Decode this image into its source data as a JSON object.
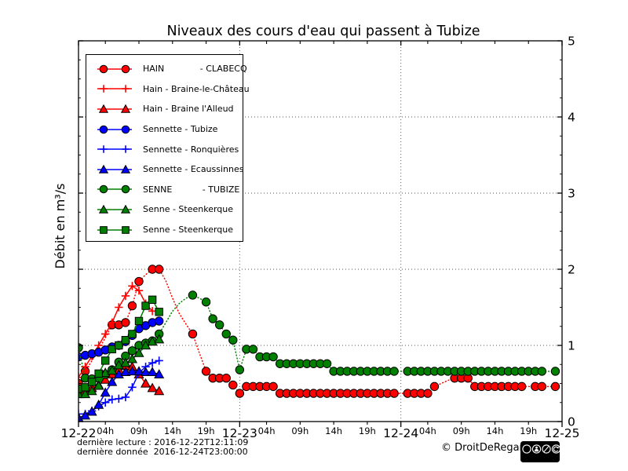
{
  "accent_colors": {
    "hain_red": "#ff0000",
    "sennette_blue": "#0000ff",
    "senne_green": "#008000"
  },
  "footer": {
    "last_read": "dernière lecture : 2016-12-22T12:11:09",
    "last_data": "dernière donnée  2016-12-24T23:00:00",
    "copyright": "© DroitDeRegard.be",
    "license_badge": {
      "name": "cc-by-nc-sa",
      "cc_label": "cc",
      "terms": [
        "BY",
        "NC",
        "SA"
      ]
    }
  },
  "chart_data": {
    "type": "line",
    "title": "Niveaux des cours d'eau qui passent à Tubize",
    "ylabel": "Débit en m³/s",
    "xlim_hours": [
      0,
      72
    ],
    "ylim": [
      0,
      5
    ],
    "y_ticks": [
      0,
      1,
      2,
      3,
      4,
      5
    ],
    "y_minor_step": 0.25,
    "grid_h_values": [
      1,
      2,
      3,
      4
    ],
    "grid_v_hours": [
      24,
      48
    ],
    "x_day_ticks": [
      {
        "hour": 0,
        "label": "12-22"
      },
      {
        "hour": 24,
        "label": "12-23"
      },
      {
        "hour": 48,
        "label": "12-24"
      },
      {
        "hour": 72,
        "label": "12-25"
      }
    ],
    "x_hour_ticks": [
      {
        "hour": 4,
        "label": "04h"
      },
      {
        "hour": 9,
        "label": "09h"
      },
      {
        "hour": 14,
        "label": "14h"
      },
      {
        "hour": 19,
        "label": "19h"
      },
      {
        "hour": 28,
        "label": "04h"
      },
      {
        "hour": 33,
        "label": "09h"
      },
      {
        "hour": 38,
        "label": "14h"
      },
      {
        "hour": 43,
        "label": "19h"
      },
      {
        "hour": 52,
        "label": "04h"
      },
      {
        "hour": 57,
        "label": "09h"
      },
      {
        "hour": 62,
        "label": "14h"
      },
      {
        "hour": 67,
        "label": "19h"
      }
    ],
    "legend_position": "upper left",
    "series": [
      {
        "id": "hain-clabecq",
        "label": "HAIN             - CLABECQ",
        "color": "#ff0000",
        "marker": "circle",
        "line": "dotted",
        "points": [
          [
            0,
            0.5
          ],
          [
            1,
            0.66
          ],
          [
            2,
            0.8
          ],
          [
            3,
            0.95
          ],
          [
            4,
            1.1
          ],
          [
            5,
            1.27
          ],
          [
            6,
            1.27
          ],
          [
            7,
            1.3
          ],
          [
            8,
            1.52
          ],
          [
            9,
            1.84
          ],
          [
            10,
            1.93
          ],
          [
            11,
            2.0
          ],
          [
            12,
            2.0
          ],
          [
            13,
            1.85
          ],
          [
            14,
            1.62
          ],
          [
            15,
            1.42
          ],
          [
            16,
            1.28
          ],
          [
            17,
            1.15
          ],
          [
            18,
            0.9
          ],
          [
            19,
            0.66
          ],
          [
            20,
            0.57
          ],
          [
            21,
            0.57
          ],
          [
            22,
            0.57
          ],
          [
            23,
            0.48
          ],
          [
            24,
            0.37
          ],
          [
            25,
            0.46
          ],
          [
            26,
            0.46
          ],
          [
            27,
            0.46
          ],
          [
            28,
            0.46
          ],
          [
            29,
            0.46
          ],
          [
            30,
            0.37
          ],
          [
            31,
            0.37
          ],
          [
            32,
            0.37
          ],
          [
            33,
            0.37
          ],
          [
            34,
            0.37
          ],
          [
            35,
            0.37
          ],
          [
            36,
            0.37
          ],
          [
            37,
            0.37
          ],
          [
            38,
            0.37
          ],
          [
            39,
            0.37
          ],
          [
            40,
            0.37
          ],
          [
            41,
            0.37
          ],
          [
            42,
            0.37
          ],
          [
            43,
            0.37
          ],
          [
            44,
            0.37
          ],
          [
            45,
            0.37
          ],
          [
            46,
            0.37
          ],
          [
            47,
            0.37
          ],
          [
            49,
            0.37
          ],
          [
            50,
            0.37
          ],
          [
            51,
            0.37
          ],
          [
            52,
            0.37
          ],
          [
            53,
            0.46
          ],
          [
            54,
            0.5
          ],
          [
            55,
            0.54
          ],
          [
            56,
            0.57
          ],
          [
            57,
            0.57
          ],
          [
            58,
            0.57
          ],
          [
            59,
            0.46
          ],
          [
            60,
            0.46
          ],
          [
            61,
            0.46
          ],
          [
            62,
            0.46
          ],
          [
            63,
            0.46
          ],
          [
            64,
            0.46
          ],
          [
            65,
            0.46
          ],
          [
            66,
            0.46
          ],
          [
            68,
            0.46
          ],
          [
            69,
            0.46
          ],
          [
            71,
            0.46
          ]
        ],
        "marker_skip_hours": [
          2,
          3,
          4,
          10,
          13,
          14,
          15,
          16,
          18,
          54,
          55
        ]
      },
      {
        "id": "hain-braine-le-chateau",
        "label": "Hain - Braine-le-Château",
        "color": "#ff0000",
        "marker": "plus",
        "line": "solid",
        "points": [
          [
            0,
            0.58
          ],
          [
            1,
            0.72
          ],
          [
            2,
            0.86
          ],
          [
            3,
            1.0
          ],
          [
            4,
            1.15
          ],
          [
            5,
            1.3
          ],
          [
            6,
            1.5
          ],
          [
            7,
            1.65
          ],
          [
            8,
            1.78
          ],
          [
            9,
            1.72
          ],
          [
            10,
            1.55
          ],
          [
            11,
            1.45
          ]
        ]
      },
      {
        "id": "hain-braine-lalleud",
        "label": "Hain - Braine l'Alleud",
        "color": "#ff0000",
        "marker": "triangle",
        "line": "solid",
        "points": [
          [
            0,
            0.4
          ],
          [
            1,
            0.41
          ],
          [
            2,
            0.44
          ],
          [
            3,
            0.48
          ],
          [
            4,
            0.55
          ],
          [
            5,
            0.62
          ],
          [
            6,
            0.68
          ],
          [
            7,
            0.73
          ],
          [
            8,
            0.72
          ],
          [
            9,
            0.62
          ],
          [
            10,
            0.5
          ],
          [
            11,
            0.44
          ],
          [
            12,
            0.4
          ]
        ]
      },
      {
        "id": "sennette-tubize",
        "label": "Sennette - Tubize",
        "color": "#0000ff",
        "marker": "circle",
        "line": "solid",
        "points": [
          [
            0,
            0.85
          ],
          [
            1,
            0.87
          ],
          [
            2,
            0.89
          ],
          [
            3,
            0.91
          ],
          [
            4,
            0.94
          ],
          [
            5,
            0.98
          ],
          [
            6,
            1.0
          ],
          [
            7,
            1.05
          ],
          [
            8,
            1.13
          ],
          [
            9,
            1.22
          ],
          [
            10,
            1.26
          ],
          [
            11,
            1.3
          ],
          [
            12,
            1.32
          ]
        ]
      },
      {
        "id": "sennette-ronquieres",
        "label": "Sennette - Ronquières",
        "color": "#0000ff",
        "marker": "plus",
        "line": "solid",
        "points": [
          [
            0,
            0.1
          ],
          [
            1,
            0.1
          ],
          [
            2,
            0.14
          ],
          [
            3,
            0.2
          ],
          [
            4,
            0.25
          ],
          [
            5,
            0.29
          ],
          [
            6,
            0.3
          ],
          [
            7,
            0.32
          ],
          [
            8,
            0.45
          ],
          [
            9,
            0.64
          ],
          [
            10,
            0.72
          ],
          [
            11,
            0.77
          ],
          [
            12,
            0.8
          ]
        ]
      },
      {
        "id": "sennette-ecaussinnes",
        "label": "Sennette - Ecaussinnes",
        "color": "#0000ff",
        "marker": "triangle",
        "line": "solid",
        "points": [
          [
            0,
            0.05
          ],
          [
            1,
            0.08
          ],
          [
            2,
            0.13
          ],
          [
            3,
            0.22
          ],
          [
            4,
            0.38
          ],
          [
            5,
            0.52
          ],
          [
            6,
            0.62
          ],
          [
            7,
            0.65
          ],
          [
            8,
            0.66
          ],
          [
            9,
            0.66
          ],
          [
            10,
            0.65
          ],
          [
            11,
            0.65
          ],
          [
            12,
            0.62
          ]
        ]
      },
      {
        "id": "senne-tubize",
        "label": "SENNE           - TUBIZE",
        "color": "#008000",
        "marker": "circle",
        "line": "dotted",
        "points": [
          [
            0,
            0.97
          ],
          [
            1,
            0.57
          ],
          [
            2,
            0.56
          ],
          [
            3,
            0.57
          ],
          [
            4,
            0.62
          ],
          [
            5,
            0.68
          ],
          [
            6,
            0.78
          ],
          [
            7,
            0.86
          ],
          [
            8,
            0.93
          ],
          [
            9,
            1.0
          ],
          [
            10,
            1.03
          ],
          [
            11,
            1.06
          ],
          [
            12,
            1.15
          ],
          [
            13,
            1.3
          ],
          [
            14,
            1.45
          ],
          [
            15,
            1.55
          ],
          [
            16,
            1.62
          ],
          [
            17,
            1.66
          ],
          [
            18,
            1.62
          ],
          [
            19,
            1.57
          ],
          [
            20,
            1.35
          ],
          [
            21,
            1.27
          ],
          [
            22,
            1.15
          ],
          [
            23,
            1.07
          ],
          [
            24,
            0.68
          ],
          [
            25,
            0.95
          ],
          [
            26,
            0.95
          ],
          [
            27,
            0.85
          ],
          [
            28,
            0.85
          ],
          [
            29,
            0.85
          ],
          [
            30,
            0.76
          ],
          [
            31,
            0.76
          ],
          [
            32,
            0.76
          ],
          [
            33,
            0.76
          ],
          [
            34,
            0.76
          ],
          [
            35,
            0.76
          ],
          [
            36,
            0.76
          ],
          [
            37,
            0.76
          ],
          [
            38,
            0.66
          ],
          [
            39,
            0.66
          ],
          [
            40,
            0.66
          ],
          [
            41,
            0.66
          ],
          [
            42,
            0.66
          ],
          [
            43,
            0.66
          ],
          [
            44,
            0.66
          ],
          [
            45,
            0.66
          ],
          [
            46,
            0.66
          ],
          [
            47,
            0.66
          ],
          [
            49,
            0.66
          ],
          [
            50,
            0.66
          ],
          [
            51,
            0.66
          ],
          [
            52,
            0.66
          ],
          [
            53,
            0.66
          ],
          [
            54,
            0.66
          ],
          [
            55,
            0.66
          ],
          [
            56,
            0.66
          ],
          [
            57,
            0.66
          ],
          [
            58,
            0.66
          ],
          [
            59,
            0.66
          ],
          [
            60,
            0.66
          ],
          [
            61,
            0.66
          ],
          [
            62,
            0.66
          ],
          [
            63,
            0.66
          ],
          [
            64,
            0.66
          ],
          [
            65,
            0.66
          ],
          [
            66,
            0.66
          ],
          [
            67,
            0.66
          ],
          [
            68,
            0.66
          ],
          [
            69,
            0.66
          ],
          [
            71,
            0.66
          ]
        ],
        "marker_skip_hours": [
          13,
          14,
          15,
          16,
          18
        ]
      },
      {
        "id": "senne-steenkerque-1",
        "label": "Senne - Steenkerque",
        "color": "#008000",
        "marker": "triangle",
        "line": "solid",
        "points": [
          [
            0,
            0.36
          ],
          [
            1,
            0.36
          ],
          [
            2,
            0.4
          ],
          [
            3,
            0.47
          ],
          [
            4,
            0.64
          ],
          [
            5,
            0.67
          ],
          [
            6,
            0.74
          ],
          [
            7,
            0.77
          ],
          [
            8,
            0.82
          ],
          [
            9,
            0.9
          ],
          [
            10,
            1.0
          ],
          [
            11,
            1.05
          ],
          [
            12,
            1.08
          ]
        ]
      },
      {
        "id": "senne-steenkerque-2",
        "label": "Senne - Steenkerque",
        "color": "#008000",
        "marker": "square",
        "line": "solid",
        "points": [
          [
            0,
            0.43
          ],
          [
            1,
            0.45
          ],
          [
            2,
            0.52
          ],
          [
            3,
            0.63
          ],
          [
            4,
            0.8
          ],
          [
            5,
            0.95
          ],
          [
            6,
            1.0
          ],
          [
            7,
            1.07
          ],
          [
            8,
            1.15
          ],
          [
            9,
            1.32
          ],
          [
            10,
            1.52
          ],
          [
            11,
            1.6
          ],
          [
            12,
            1.44
          ]
        ]
      }
    ]
  }
}
